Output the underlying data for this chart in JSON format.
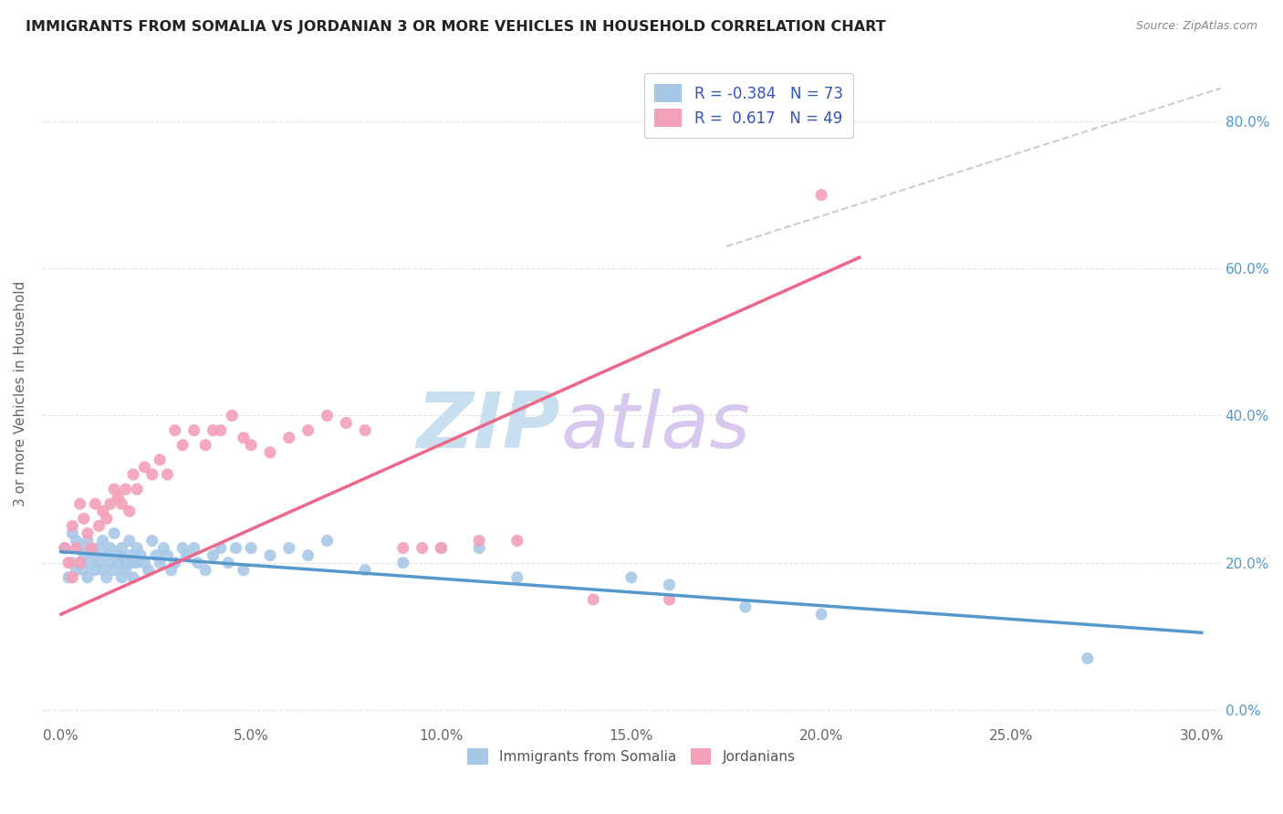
{
  "title": "IMMIGRANTS FROM SOMALIA VS JORDANIAN 3 OR MORE VEHICLES IN HOUSEHOLD CORRELATION CHART",
  "source": "Source: ZipAtlas.com",
  "ylabel_label": "3 or more Vehicles in Household",
  "xlim": [
    -0.005,
    0.305
  ],
  "ylim": [
    -0.02,
    0.88
  ],
  "r_somalia": -0.384,
  "n_somalia": 73,
  "r_jordanian": 0.617,
  "n_jordanian": 49,
  "color_somalia": "#a8c8e8",
  "color_jordanian": "#f4a0b8",
  "color_somalia_line": "#5599cc",
  "color_jordanian_line": "#ee6688",
  "color_dashed_line": "#cccccc",
  "watermark_zip": "ZIP",
  "watermark_atlas": "atlas",
  "watermark_color_zip": "#c8dff0",
  "watermark_color_atlas": "#d8c8f0",
  "legend_label_somalia": "Immigrants from Somalia",
  "legend_label_jordanian": "Jordanians",
  "x_tick_vals": [
    0.0,
    0.05,
    0.1,
    0.15,
    0.2,
    0.25,
    0.3
  ],
  "x_tick_labels": [
    "0.0%",
    "5.0%",
    "10.0%",
    "15.0%",
    "20.0%",
    "25.0%",
    "30.0%"
  ],
  "y_tick_vals": [
    0.0,
    0.2,
    0.4,
    0.6,
    0.8
  ],
  "y_tick_labels": [
    "0.0%",
    "20.0%",
    "40.0%",
    "60.0%",
    "80.0%"
  ],
  "somalia_line_x0": 0.0,
  "somalia_line_y0": 0.215,
  "somalia_line_x1": 0.3,
  "somalia_line_y1": 0.105,
  "jordanian_line_x0": 0.0,
  "jordanian_line_y0": 0.13,
  "jordanian_line_x1": 0.21,
  "jordanian_line_y1": 0.615,
  "dashed_line_x0": 0.175,
  "dashed_line_y0": 0.63,
  "dashed_line_x1": 0.305,
  "dashed_line_y1": 0.845,
  "somalia_scatter_x": [
    0.001,
    0.002,
    0.003,
    0.003,
    0.004,
    0.004,
    0.005,
    0.005,
    0.006,
    0.006,
    0.007,
    0.007,
    0.008,
    0.008,
    0.009,
    0.009,
    0.01,
    0.01,
    0.011,
    0.011,
    0.012,
    0.012,
    0.013,
    0.013,
    0.014,
    0.014,
    0.015,
    0.015,
    0.016,
    0.016,
    0.017,
    0.017,
    0.018,
    0.018,
    0.019,
    0.019,
    0.02,
    0.02,
    0.021,
    0.022,
    0.023,
    0.024,
    0.025,
    0.026,
    0.027,
    0.028,
    0.029,
    0.03,
    0.032,
    0.033,
    0.035,
    0.036,
    0.038,
    0.04,
    0.042,
    0.044,
    0.046,
    0.048,
    0.05,
    0.055,
    0.06,
    0.065,
    0.07,
    0.08,
    0.09,
    0.1,
    0.11,
    0.12,
    0.15,
    0.16,
    0.18,
    0.2,
    0.27
  ],
  "somalia_scatter_y": [
    0.22,
    0.18,
    0.2,
    0.24,
    0.19,
    0.23,
    0.22,
    0.2,
    0.21,
    0.19,
    0.23,
    0.18,
    0.22,
    0.2,
    0.19,
    0.21,
    0.22,
    0.2,
    0.23,
    0.19,
    0.21,
    0.18,
    0.22,
    0.2,
    0.19,
    0.24,
    0.21,
    0.2,
    0.22,
    0.18,
    0.2,
    0.19,
    0.23,
    0.21,
    0.2,
    0.18,
    0.22,
    0.2,
    0.21,
    0.2,
    0.19,
    0.23,
    0.21,
    0.2,
    0.22,
    0.21,
    0.19,
    0.2,
    0.22,
    0.21,
    0.22,
    0.2,
    0.19,
    0.21,
    0.22,
    0.2,
    0.22,
    0.19,
    0.22,
    0.21,
    0.22,
    0.21,
    0.23,
    0.19,
    0.2,
    0.22,
    0.22,
    0.18,
    0.18,
    0.17,
    0.14,
    0.13,
    0.07
  ],
  "jordanian_scatter_x": [
    0.001,
    0.002,
    0.003,
    0.003,
    0.004,
    0.005,
    0.005,
    0.006,
    0.007,
    0.008,
    0.009,
    0.01,
    0.011,
    0.012,
    0.013,
    0.014,
    0.015,
    0.016,
    0.017,
    0.018,
    0.019,
    0.02,
    0.022,
    0.024,
    0.026,
    0.028,
    0.03,
    0.032,
    0.035,
    0.038,
    0.04,
    0.042,
    0.045,
    0.048,
    0.05,
    0.055,
    0.06,
    0.065,
    0.07,
    0.075,
    0.08,
    0.09,
    0.095,
    0.1,
    0.11,
    0.12,
    0.14,
    0.16,
    0.2
  ],
  "jordanian_scatter_y": [
    0.22,
    0.2,
    0.25,
    0.18,
    0.22,
    0.28,
    0.2,
    0.26,
    0.24,
    0.22,
    0.28,
    0.25,
    0.27,
    0.26,
    0.28,
    0.3,
    0.29,
    0.28,
    0.3,
    0.27,
    0.32,
    0.3,
    0.33,
    0.32,
    0.34,
    0.32,
    0.38,
    0.36,
    0.38,
    0.36,
    0.38,
    0.38,
    0.4,
    0.37,
    0.36,
    0.35,
    0.37,
    0.38,
    0.4,
    0.39,
    0.38,
    0.22,
    0.22,
    0.22,
    0.23,
    0.23,
    0.15,
    0.15,
    0.7
  ]
}
